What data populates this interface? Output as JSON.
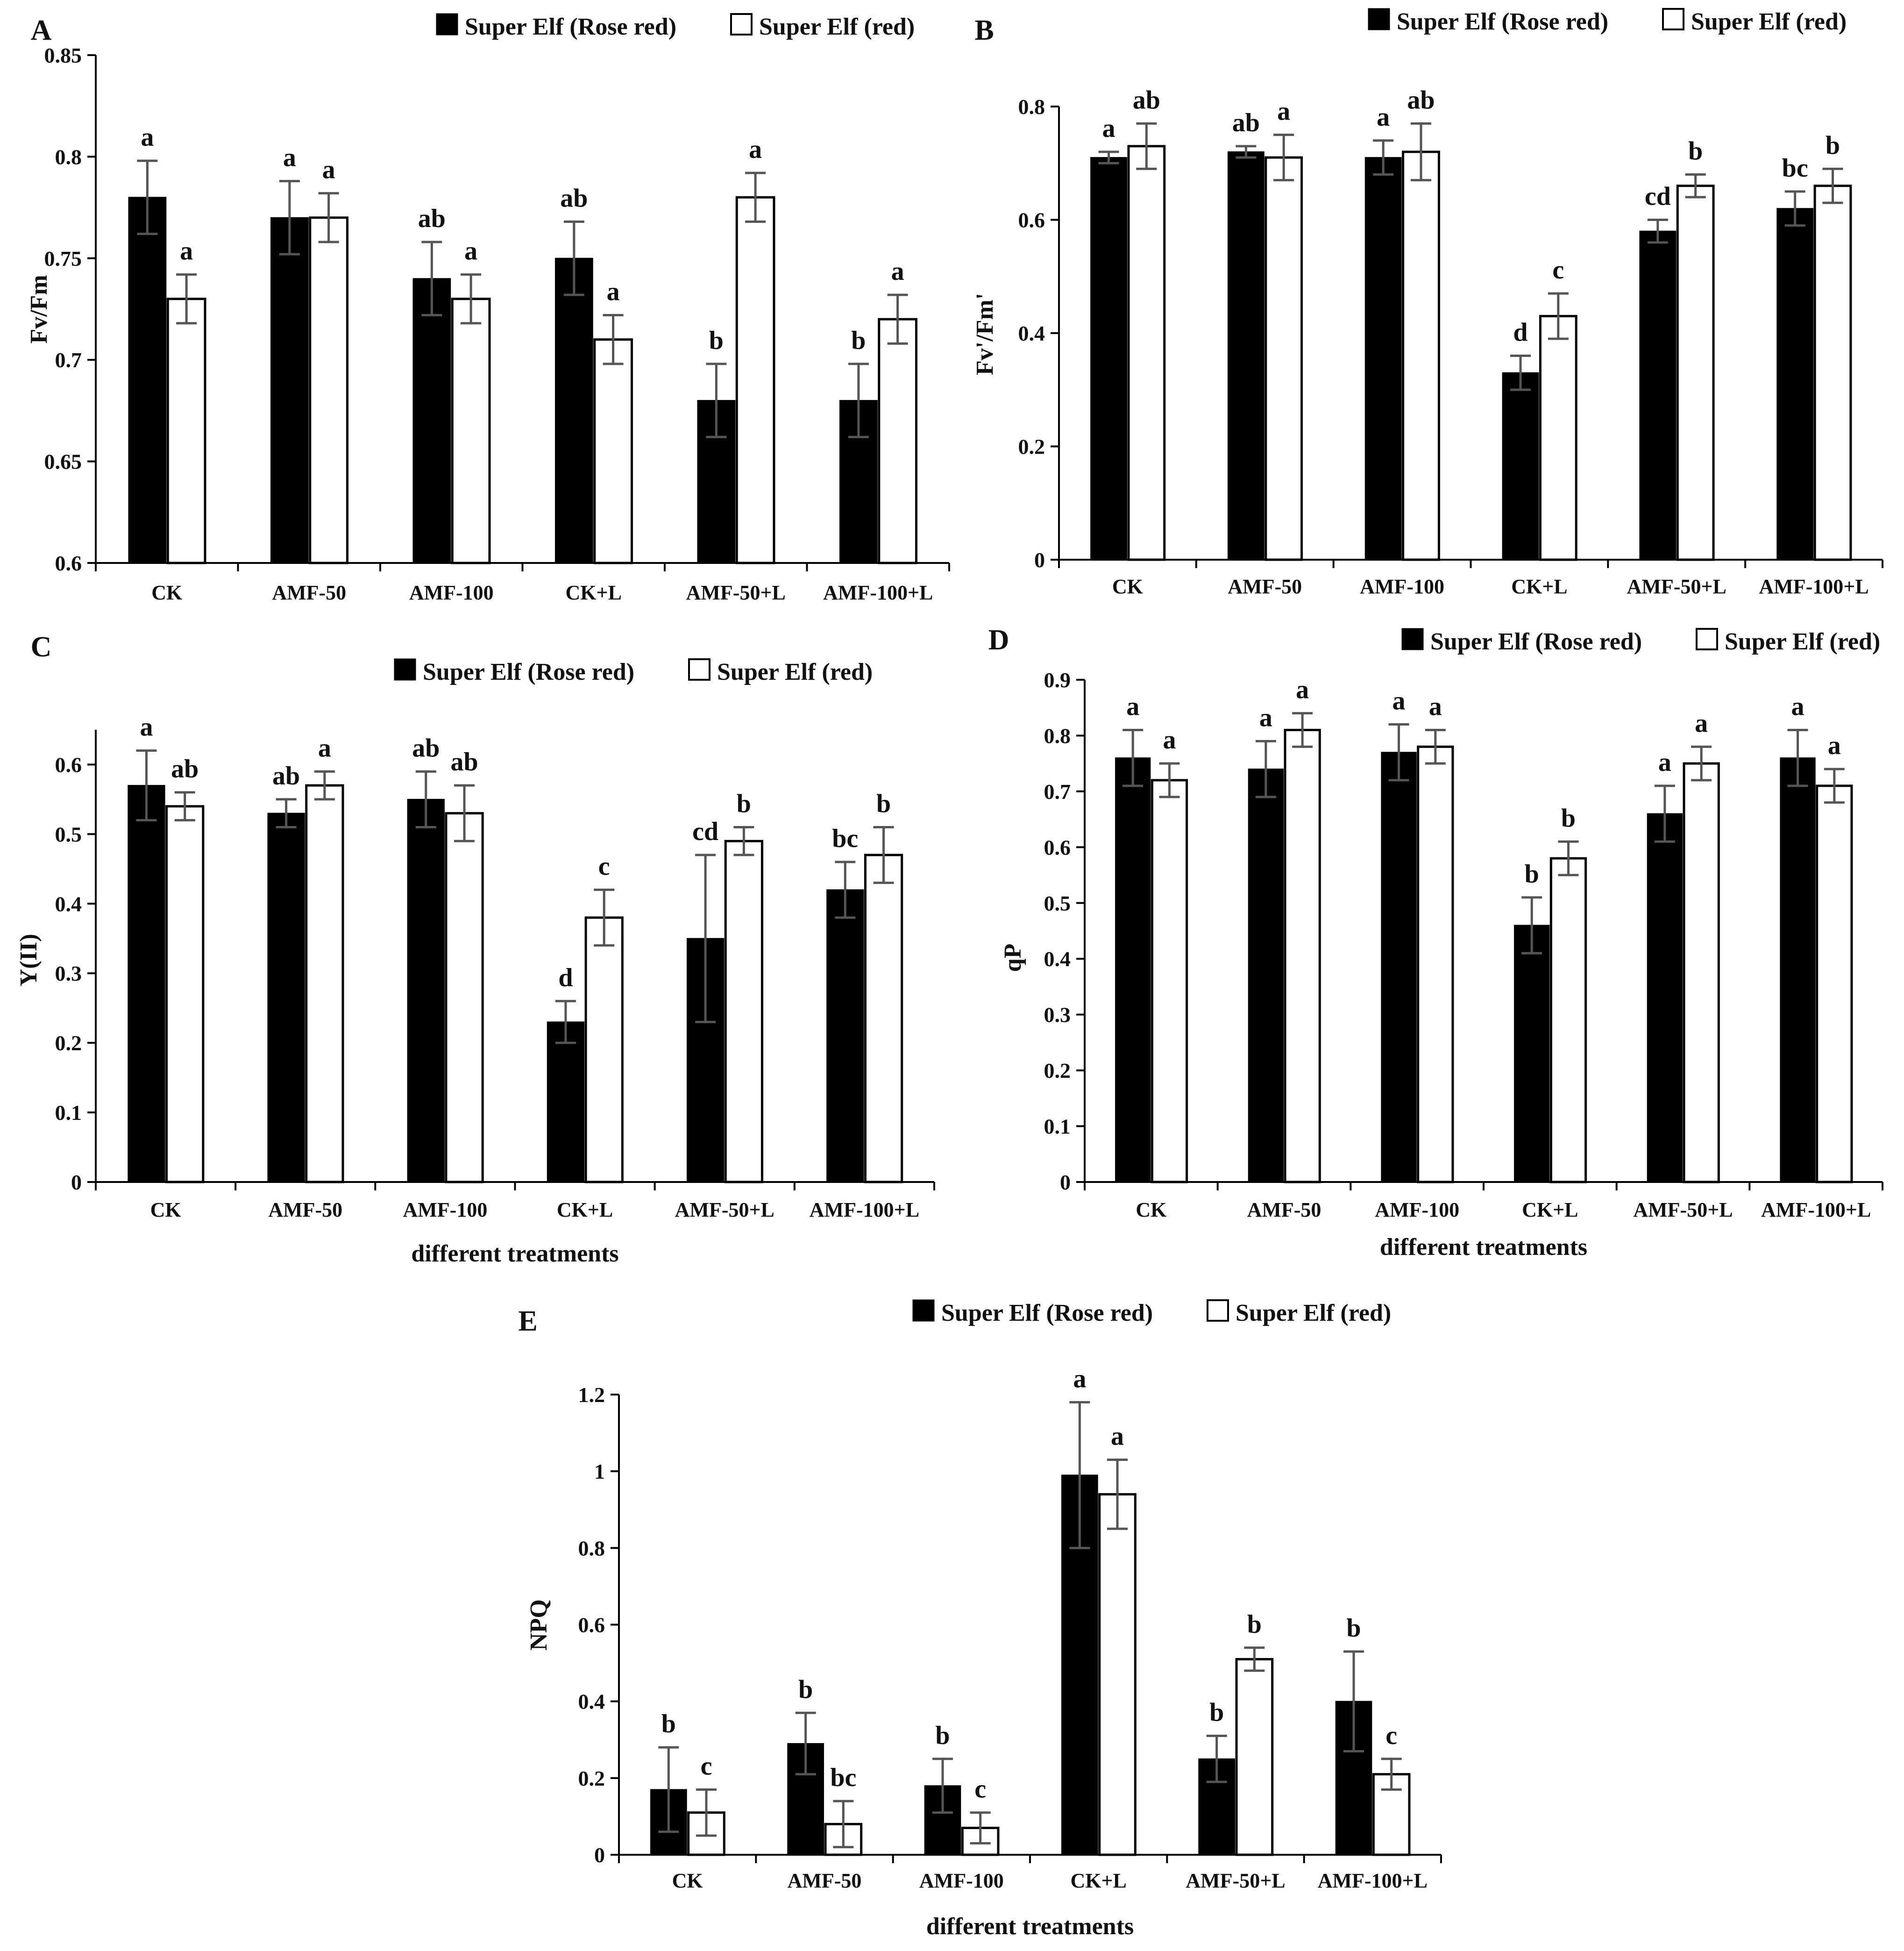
{
  "legend": {
    "series1": "Super Elf (Rose red)",
    "series2": "Super Elf (red)"
  },
  "colors": {
    "series1_fill": "#000000",
    "series2_fill": "#ffffff",
    "bar_stroke": "#000000",
    "axis": "#000000",
    "error_bar": "#555555",
    "letters": "#111111"
  },
  "chart_data": [
    {
      "panel": "A",
      "type": "bar",
      "ylabel": "Fv/Fm",
      "xlabel": "",
      "ylim": [
        0.6,
        0.85
      ],
      "yticks": [
        0.6,
        0.65,
        0.7,
        0.75,
        0.8,
        0.85
      ],
      "ytick_labels": [
        "0.6",
        "0.65",
        "0.7",
        "0.75",
        "0.8",
        "0.85"
      ],
      "categories": [
        "CK",
        "AMF-50",
        "AMF-100",
        "CK+L",
        "AMF-50+L",
        "AMF-100+L"
      ],
      "series": [
        {
          "name": "Super Elf (Rose red)",
          "values": [
            0.78,
            0.77,
            0.74,
            0.75,
            0.68,
            0.68
          ],
          "errors": [
            0.018,
            0.018,
            0.018,
            0.018,
            0.018,
            0.018
          ],
          "letters": [
            "a",
            "a",
            "ab",
            "ab",
            "b",
            "b"
          ]
        },
        {
          "name": "Super Elf (red)",
          "values": [
            0.73,
            0.77,
            0.73,
            0.71,
            0.78,
            0.72
          ],
          "errors": [
            0.012,
            0.012,
            0.012,
            0.012,
            0.012,
            0.012
          ],
          "letters": [
            "a",
            "a",
            "a",
            "a",
            "a",
            "a"
          ]
        }
      ]
    },
    {
      "panel": "B",
      "type": "bar",
      "ylabel": "Fv'/Fm'",
      "xlabel": "",
      "ylim": [
        0,
        0.8
      ],
      "yticks": [
        0,
        0.2,
        0.4,
        0.6,
        0.8
      ],
      "ytick_labels": [
        "0",
        "0.2",
        "0.4",
        "0.6",
        "0.8"
      ],
      "categories": [
        "CK",
        "AMF-50",
        "AMF-100",
        "CK+L",
        "AMF-50+L",
        "AMF-100+L"
      ],
      "series": [
        {
          "name": "Super Elf (Rose red)",
          "values": [
            0.71,
            0.72,
            0.71,
            0.33,
            0.58,
            0.62
          ],
          "errors": [
            0.01,
            0.01,
            0.03,
            0.03,
            0.02,
            0.03
          ],
          "letters": [
            "a",
            "ab",
            "a",
            "d",
            "cd",
            "bc"
          ]
        },
        {
          "name": "Super Elf (red)",
          "values": [
            0.73,
            0.71,
            0.72,
            0.43,
            0.66,
            0.66
          ],
          "errors": [
            0.04,
            0.04,
            0.05,
            0.04,
            0.02,
            0.03
          ],
          "letters": [
            "ab",
            "a",
            "ab",
            "c",
            "b",
            "b"
          ]
        }
      ]
    },
    {
      "panel": "C",
      "type": "bar",
      "ylabel": "Y(II)",
      "xlabel": "different treatments",
      "ylim": [
        0,
        0.65
      ],
      "yticks": [
        0,
        0.1,
        0.2,
        0.3,
        0.4,
        0.5,
        0.6
      ],
      "ytick_labels": [
        "0",
        "0.1",
        "0.2",
        "0.3",
        "0.4",
        "0.5",
        "0.6"
      ],
      "categories": [
        "CK",
        "AMF-50",
        "AMF-100",
        "CK+L",
        "AMF-50+L",
        "AMF-100+L"
      ],
      "series": [
        {
          "name": "Super Elf (Rose red)",
          "values": [
            0.57,
            0.53,
            0.55,
            0.23,
            0.35,
            0.42
          ],
          "errors": [
            0.05,
            0.02,
            0.04,
            0.03,
            0.12,
            0.04
          ],
          "letters": [
            "a",
            "ab",
            "ab",
            "d",
            "cd",
            "bc"
          ]
        },
        {
          "name": "Super Elf (red)",
          "values": [
            0.54,
            0.57,
            0.53,
            0.38,
            0.49,
            0.47
          ],
          "errors": [
            0.02,
            0.02,
            0.04,
            0.04,
            0.02,
            0.04
          ],
          "letters": [
            "ab",
            "a",
            "ab",
            "c",
            "b",
            "b"
          ]
        }
      ]
    },
    {
      "panel": "D",
      "type": "bar",
      "ylabel": "qP",
      "xlabel": "different treatments",
      "ylim": [
        0,
        0.9
      ],
      "yticks": [
        0,
        0.1,
        0.2,
        0.3,
        0.4,
        0.5,
        0.6,
        0.7,
        0.8,
        0.9
      ],
      "ytick_labels": [
        "0",
        "0.1",
        "0.2",
        "0.3",
        "0.4",
        "0.5",
        "0.6",
        "0.7",
        "0.8",
        "0.9"
      ],
      "categories": [
        "CK",
        "AMF-50",
        "AMF-100",
        "CK+L",
        "AMF-50+L",
        "AMF-100+L"
      ],
      "series": [
        {
          "name": "Super Elf (Rose red)",
          "values": [
            0.76,
            0.74,
            0.77,
            0.46,
            0.66,
            0.76
          ],
          "errors": [
            0.05,
            0.05,
            0.05,
            0.05,
            0.05,
            0.05
          ],
          "letters": [
            "a",
            "a",
            "a",
            "b",
            "a",
            "a"
          ]
        },
        {
          "name": "Super Elf (red)",
          "values": [
            0.72,
            0.81,
            0.78,
            0.58,
            0.75,
            0.71
          ],
          "errors": [
            0.03,
            0.03,
            0.03,
            0.03,
            0.03,
            0.03
          ],
          "letters": [
            "a",
            "a",
            "a",
            "b",
            "a",
            "a"
          ]
        }
      ]
    },
    {
      "panel": "E",
      "type": "bar",
      "ylabel": "NPQ",
      "xlabel": "different treatments",
      "ylim": [
        0,
        1.2
      ],
      "yticks": [
        0,
        0.2,
        0.4,
        0.6,
        0.8,
        1,
        1.2
      ],
      "ytick_labels": [
        "0",
        "0.2",
        "0.4",
        "0.6",
        "0.8",
        "1",
        "1.2"
      ],
      "categories": [
        "CK",
        "AMF-50",
        "AMF-100",
        "CK+L",
        "AMF-50+L",
        "AMF-100+L"
      ],
      "series": [
        {
          "name": "Super Elf (Rose red)",
          "values": [
            0.17,
            0.29,
            0.18,
            0.99,
            0.25,
            0.4
          ],
          "errors": [
            0.11,
            0.08,
            0.07,
            0.19,
            0.06,
            0.13
          ],
          "letters": [
            "b",
            "b",
            "b",
            "a",
            "b",
            "b"
          ]
        },
        {
          "name": "Super Elf (red)",
          "values": [
            0.11,
            0.08,
            0.07,
            0.94,
            0.51,
            0.21
          ],
          "errors": [
            0.06,
            0.06,
            0.04,
            0.09,
            0.03,
            0.04
          ],
          "letters": [
            "c",
            "bc",
            "c",
            "a",
            "b",
            "c"
          ]
        }
      ]
    }
  ]
}
